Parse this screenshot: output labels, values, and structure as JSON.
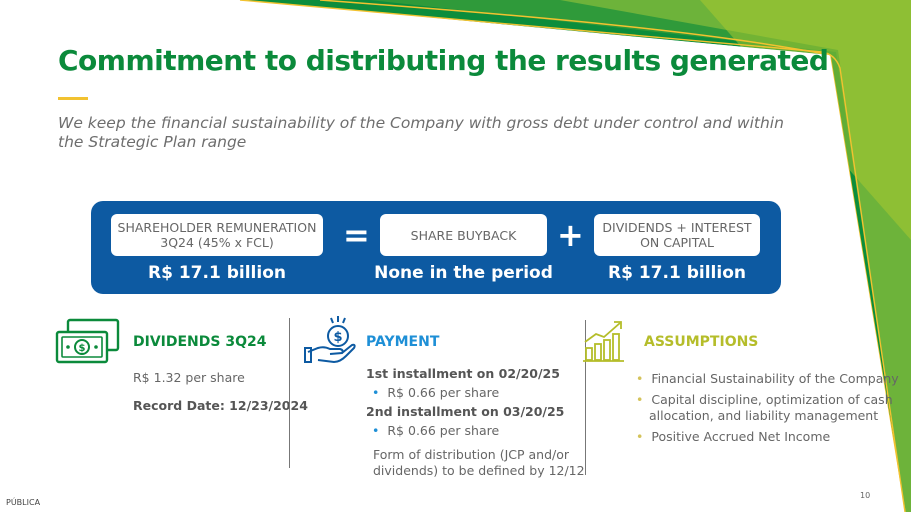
{
  "title": "Commitment to distributing the results generated",
  "subtitle": "We keep the financial sustainability of the Company with gross debt under control and within the Strategic Plan range",
  "banner": {
    "remuneration_label_1": "SHAREHOLDER REMUNERATION",
    "remuneration_label_2": "3Q24 (45% x FCL)",
    "remuneration_value": "R$ 17.1 billion",
    "equals": "=",
    "buyback_label": "SHARE BUYBACK",
    "buyback_value": "None in the period",
    "plus": "+",
    "dividends_label_1": "DIVIDENDS + INTEREST",
    "dividends_label_2": "ON CAPITAL",
    "dividends_value": "R$ 17.1 billion"
  },
  "dividends": {
    "heading": "DIVIDENDS 3Q24",
    "per_share": "R$ 1.32 per share",
    "record_date": "Record Date: 12/23/2024"
  },
  "payment": {
    "heading": "PAYMENT",
    "first": "1st installment on 02/20/25",
    "first_value": "R$ 0.66 per share",
    "second": "2nd installment on 03/20/25",
    "second_value": "R$ 0.66 per share",
    "form_1": "Form of distribution (JCP and/or",
    "form_2": "dividends) to be defined by 12/12"
  },
  "assumptions": {
    "heading": "ASSUMPTIONS",
    "item1": "Financial Sustainability of the Company",
    "item2_1": "Capital discipline, optimization of cash",
    "item2_2": "allocation, and liability management",
    "item3": "Positive Accrued Net Income"
  },
  "colors": {
    "title_green": "#0b8a3b",
    "banner_blue": "#0d5aa2",
    "assumption_yellow": "#b5bd2a",
    "accent_yellow": "#f2c230"
  },
  "footer": {
    "classification": "PÚBLICA",
    "page_number": "10"
  }
}
